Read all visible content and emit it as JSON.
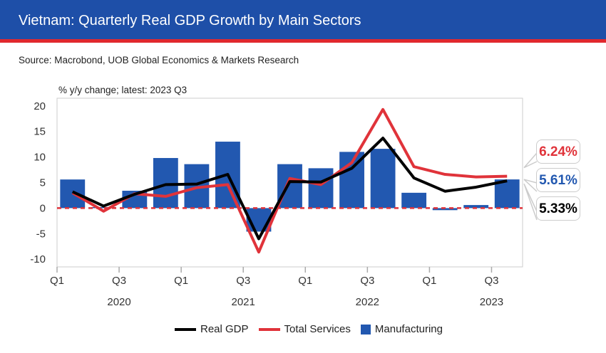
{
  "header": {
    "title": "Vietnam: Quarterly Real GDP Growth by Main Sectors"
  },
  "source": "Source: Macrobond, UOB Global Economics & Markets Research",
  "chart_data": {
    "type": "bar+line",
    "subtitle": "% y/y change; latest: 2023 Q3",
    "categories": [
      "2020 Q1",
      "2020 Q2",
      "2020 Q3",
      "2020 Q4",
      "2021 Q1",
      "2021 Q2",
      "2021 Q3",
      "2021 Q4",
      "2022 Q1",
      "2022 Q2",
      "2022 Q3",
      "2022 Q4",
      "2023 Q1",
      "2023 Q2",
      "2023 Q3"
    ],
    "x_tick_labels": [
      "Q1",
      "Q3",
      "Q1",
      "Q3",
      "Q1",
      "Q3",
      "Q1",
      "Q3"
    ],
    "year_labels": [
      "2020",
      "2021",
      "2022",
      "2023"
    ],
    "ylim": [
      -11.5,
      21.5
    ],
    "yticks": [
      -10,
      -5,
      0,
      5,
      10,
      15,
      20
    ],
    "grid": false,
    "legend_position": "bottom",
    "series": [
      {
        "name": "Real GDP",
        "type": "line",
        "color": "#000000",
        "values": [
          3.2,
          0.4,
          2.7,
          4.6,
          4.7,
          6.6,
          -6.0,
          5.2,
          5.1,
          7.8,
          13.7,
          5.9,
          3.3,
          4.1,
          5.33
        ]
      },
      {
        "name": "Total Services",
        "type": "line",
        "color": "#e0333a",
        "values": [
          3.0,
          -0.6,
          2.8,
          2.3,
          4.0,
          4.6,
          -8.6,
          5.8,
          4.6,
          8.9,
          19.3,
          8.1,
          6.6,
          6.1,
          6.24
        ]
      },
      {
        "name": "Manufacturing",
        "type": "bar",
        "color": "#2258b0",
        "values": [
          5.6,
          0.2,
          3.4,
          9.8,
          8.6,
          13.0,
          -4.6,
          8.6,
          7.8,
          11.0,
          11.6,
          3.0,
          -0.4,
          0.6,
          5.61
        ]
      }
    ],
    "latest_labels": [
      {
        "text": "6.24%",
        "color": "#e0333a"
      },
      {
        "text": "5.61%",
        "color": "#2258b0"
      },
      {
        "text": "5.33%",
        "color": "#000000"
      }
    ]
  }
}
